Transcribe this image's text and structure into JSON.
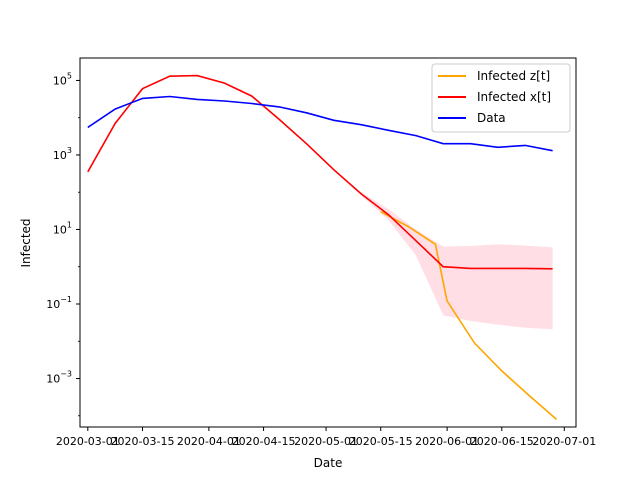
{
  "chart_data": {
    "type": "line",
    "title": "",
    "xlabel": "Date",
    "ylabel": "Infected",
    "y_scale": "log",
    "xlim": [
      "2020-02-28",
      "2020-07-04"
    ],
    "ylim": [
      5e-05,
      400000
    ],
    "x_ticks": [
      "2020-03-01",
      "2020-03-15",
      "2020-04-01",
      "2020-04-15",
      "2020-05-01",
      "2020-05-15",
      "2020-06-01",
      "2020-06-15",
      "2020-07-01"
    ],
    "y_ticks": [
      {
        "value": 0.001,
        "label": "10",
        "exp": "−3"
      },
      {
        "value": 0.1,
        "label": "10",
        "exp": "−1"
      },
      {
        "value": 10,
        "label": "10",
        "exp": "1"
      },
      {
        "value": 1000,
        "label": "10",
        "exp": "3"
      },
      {
        "value": 100000,
        "label": "10",
        "exp": "5"
      }
    ],
    "legend_position": "top-right",
    "grid": false,
    "series": [
      {
        "name": "Infected z[t]",
        "color": "#ffa500",
        "x": [
          "2020-05-15",
          "2020-05-22",
          "2020-05-29",
          "2020-06-01",
          "2020-06-08",
          "2020-06-15",
          "2020-06-22",
          "2020-06-29"
        ],
        "y": [
          30,
          12,
          4,
          0.12,
          0.009,
          0.0016,
          0.00035,
          8e-05
        ]
      },
      {
        "name": "Infected x[t]",
        "color": "#ff0000",
        "x": [
          "2020-03-01",
          "2020-03-08",
          "2020-03-15",
          "2020-03-22",
          "2020-03-29",
          "2020-04-05",
          "2020-04-12",
          "2020-04-19",
          "2020-04-26",
          "2020-05-03",
          "2020-05-10",
          "2020-05-17",
          "2020-05-24",
          "2020-05-31",
          "2020-06-07",
          "2020-06-14",
          "2020-06-21",
          "2020-06-28"
        ],
        "y": [
          350,
          7000,
          60000,
          130000,
          135000,
          85000,
          38000,
          9000,
          2000,
          400,
          90,
          25,
          5,
          1,
          0.9,
          0.9,
          0.9,
          0.88
        ]
      },
      {
        "name": "Data",
        "color": "#0000ff",
        "x": [
          "2020-03-01",
          "2020-03-08",
          "2020-03-15",
          "2020-03-22",
          "2020-03-29",
          "2020-04-05",
          "2020-04-12",
          "2020-04-19",
          "2020-04-26",
          "2020-05-03",
          "2020-05-10",
          "2020-05-17",
          "2020-05-24",
          "2020-05-31",
          "2020-06-07",
          "2020-06-14",
          "2020-06-21",
          "2020-06-28"
        ],
        "y": [
          5500,
          17000,
          33000,
          37000,
          31000,
          28000,
          24000,
          19500,
          13500,
          8500,
          6500,
          4600,
          3300,
          2000,
          2000,
          1600,
          1800,
          1300
        ]
      }
    ],
    "band": {
      "color": "#ffc0cb",
      "x": [
        "2020-05-10",
        "2020-05-17",
        "2020-05-24",
        "2020-05-31",
        "2020-06-07",
        "2020-06-14",
        "2020-06-21",
        "2020-06-28"
      ],
      "upper": [
        100,
        35,
        10,
        3.5,
        3.6,
        4,
        3.7,
        3.3
      ],
      "lower": [
        80,
        18,
        2,
        0.05,
        0.035,
        0.028,
        0.023,
        0.021
      ]
    }
  }
}
